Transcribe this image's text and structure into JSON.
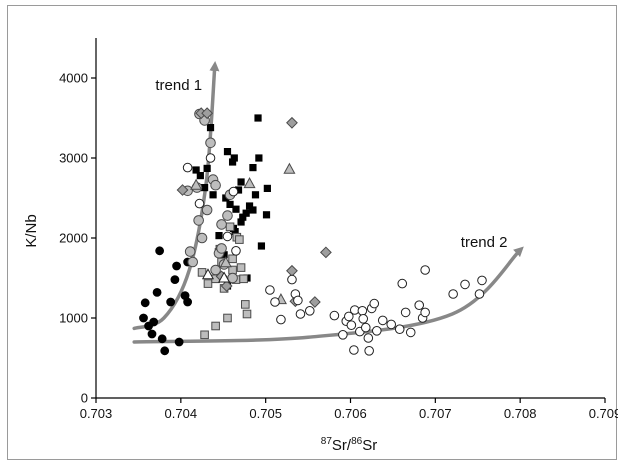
{
  "chart_data": {
    "type": "scatter",
    "xlabel_parts": {
      "iso_a": "87",
      "sr_a": "Sr",
      "slash": "/",
      "iso_b": "86",
      "sr_b": "Sr"
    },
    "ylabel": "K/Nb",
    "xlim": [
      0.703,
      0.709
    ],
    "ylim": [
      0,
      4500
    ],
    "xticks": [
      "0.703",
      "0.704",
      "0.705",
      "0.706",
      "0.707",
      "0.708",
      "0.709"
    ],
    "yticks": [
      "0",
      "1000",
      "2000",
      "3000",
      "4000"
    ],
    "xtick_values": [
      0.703,
      0.704,
      0.705,
      0.706,
      0.707,
      0.708,
      0.709
    ],
    "ytick_values": [
      0,
      1000,
      2000,
      3000,
      4000
    ],
    "grid": false,
    "colors": {
      "black": "#000000",
      "grey_fill": "#bdbdbd",
      "diamond_fill": "#9e9e9e",
      "open_fill": "#ffffff",
      "outline": "#4a4a4a",
      "trend": "#888888"
    },
    "annotations": [
      {
        "text": "trend 1",
        "x": 0.7037,
        "y": 3850
      },
      {
        "text": "trend 2",
        "x": 0.7073,
        "y": 1890
      }
    ],
    "trends": [
      {
        "name": "trend 1",
        "points": [
          [
            0.70345,
            870
          ],
          [
            0.7038,
            1000
          ],
          [
            0.7041,
            1600
          ],
          [
            0.7043,
            2700
          ],
          [
            0.7044,
            4150
          ]
        ]
      },
      {
        "name": "trend 2",
        "points": [
          [
            0.70345,
            700
          ],
          [
            0.7055,
            760
          ],
          [
            0.7072,
            1050
          ],
          [
            0.708,
            1850
          ]
        ]
      }
    ],
    "series": [
      {
        "marker": "filled-circle",
        "points": [
          [
            0.70356,
            1000
          ],
          [
            0.70362,
            900
          ],
          [
            0.70358,
            1190
          ],
          [
            0.70368,
            950
          ],
          [
            0.70372,
            1320
          ],
          [
            0.70375,
            1840
          ],
          [
            0.70378,
            740
          ],
          [
            0.70381,
            590
          ],
          [
            0.70388,
            1200
          ],
          [
            0.70393,
            1480
          ],
          [
            0.70395,
            1650
          ],
          [
            0.70398,
            700
          ],
          [
            0.70405,
            1280
          ],
          [
            0.70408,
            1200
          ],
          [
            0.70408,
            1700
          ],
          [
            0.70366,
            800
          ]
        ]
      },
      {
        "marker": "filled-square",
        "points": [
          [
            0.70418,
            2850
          ],
          [
            0.70423,
            2780
          ],
          [
            0.70428,
            2630
          ],
          [
            0.70431,
            2870
          ],
          [
            0.70435,
            3380
          ],
          [
            0.70438,
            2540
          ],
          [
            0.70442,
            1580
          ],
          [
            0.70445,
            2030
          ],
          [
            0.70448,
            1800
          ],
          [
            0.70451,
            1790
          ],
          [
            0.70453,
            2500
          ],
          [
            0.70455,
            3080
          ],
          [
            0.70458,
            2420
          ],
          [
            0.70461,
            2950
          ],
          [
            0.70462,
            2120
          ],
          [
            0.70464,
            2080
          ],
          [
            0.70468,
            2600
          ],
          [
            0.70471,
            2200
          ],
          [
            0.70473,
            2260
          ],
          [
            0.70477,
            2310
          ],
          [
            0.70478,
            1500
          ],
          [
            0.70481,
            2400
          ],
          [
            0.70485,
            2880
          ],
          [
            0.70488,
            2540
          ],
          [
            0.70491,
            3500
          ],
          [
            0.70495,
            1900
          ],
          [
            0.70501,
            2290
          ],
          [
            0.70502,
            2620
          ],
          [
            0.70465,
            2360
          ],
          [
            0.70485,
            2350
          ],
          [
            0.70455,
            1400
          ],
          [
            0.70471,
            2700
          ],
          [
            0.70463,
            3000
          ],
          [
            0.70492,
            3000
          ]
        ]
      },
      {
        "marker": "grey-square",
        "points": [
          [
            0.70425,
            1570
          ],
          [
            0.70428,
            790
          ],
          [
            0.70432,
            1430
          ],
          [
            0.70441,
            1490
          ],
          [
            0.70446,
            1860
          ],
          [
            0.70448,
            1700
          ],
          [
            0.70451,
            1370
          ],
          [
            0.70455,
            1000
          ],
          [
            0.70461,
            1600
          ],
          [
            0.70465,
            1480
          ],
          [
            0.70466,
            2010
          ],
          [
            0.70469,
            1980
          ],
          [
            0.70471,
            1630
          ],
          [
            0.70474,
            1490
          ],
          [
            0.70476,
            1170
          ],
          [
            0.70478,
            1050
          ],
          [
            0.70445,
            1820
          ],
          [
            0.70441,
            900
          ],
          [
            0.70458,
            2140
          ],
          [
            0.70461,
            1740
          ]
        ]
      },
      {
        "marker": "grey-circle",
        "points": [
          [
            0.70408,
            2590
          ],
          [
            0.70411,
            1830
          ],
          [
            0.70414,
            1700
          ],
          [
            0.70419,
            2630
          ],
          [
            0.70421,
            2220
          ],
          [
            0.70422,
            3550
          ],
          [
            0.70425,
            2000
          ],
          [
            0.70428,
            3470
          ],
          [
            0.70431,
            2350
          ],
          [
            0.70435,
            3190
          ],
          [
            0.70438,
            2730
          ],
          [
            0.70441,
            2660
          ],
          [
            0.70445,
            1810
          ],
          [
            0.70448,
            2170
          ],
          [
            0.70451,
            1670
          ],
          [
            0.70455,
            2280
          ],
          [
            0.70458,
            2540
          ],
          [
            0.70461,
            1500
          ],
          [
            0.70441,
            1600
          ],
          [
            0.70448,
            1870
          ]
        ]
      },
      {
        "marker": "grey-diamond",
        "points": [
          [
            0.70402,
            2600
          ],
          [
            0.70424,
            3560
          ],
          [
            0.70431,
            3560
          ],
          [
            0.70448,
            1520
          ],
          [
            0.70454,
            1400
          ],
          [
            0.70531,
            3440
          ],
          [
            0.70531,
            1590
          ],
          [
            0.70535,
            1210
          ],
          [
            0.70571,
            1820
          ],
          [
            0.70558,
            1200
          ]
        ]
      },
      {
        "marker": "grey-triangle",
        "points": [
          [
            0.70418,
            2660
          ],
          [
            0.70453,
            1690
          ],
          [
            0.70481,
            2680
          ],
          [
            0.70528,
            2860
          ],
          [
            0.70518,
            1230
          ]
        ]
      },
      {
        "marker": "open-triangle",
        "points": [
          [
            0.70432,
            1540
          ],
          [
            0.70451,
            1500
          ]
        ]
      },
      {
        "marker": "open-circle",
        "points": [
          [
            0.70408,
            2880
          ],
          [
            0.70422,
            2430
          ],
          [
            0.70435,
            3000
          ],
          [
            0.70455,
            2020
          ],
          [
            0.70462,
            2580
          ],
          [
            0.70465,
            1840
          ],
          [
            0.70505,
            1350
          ],
          [
            0.70511,
            1200
          ],
          [
            0.70518,
            980
          ],
          [
            0.70531,
            1480
          ],
          [
            0.70535,
            1300
          ],
          [
            0.70538,
            1220
          ],
          [
            0.70541,
            1050
          ],
          [
            0.70552,
            1090
          ],
          [
            0.70581,
            1030
          ],
          [
            0.70591,
            790
          ],
          [
            0.70595,
            960
          ],
          [
            0.70598,
            1020
          ],
          [
            0.70601,
            910
          ],
          [
            0.70604,
            600
          ],
          [
            0.70605,
            1100
          ],
          [
            0.70611,
            830
          ],
          [
            0.70614,
            1090
          ],
          [
            0.70615,
            990
          ],
          [
            0.70618,
            880
          ],
          [
            0.70621,
            750
          ],
          [
            0.70622,
            590
          ],
          [
            0.70625,
            1120
          ],
          [
            0.70628,
            1180
          ],
          [
            0.70631,
            840
          ],
          [
            0.70638,
            970
          ],
          [
            0.70648,
            920
          ],
          [
            0.70658,
            860
          ],
          [
            0.70661,
            1430
          ],
          [
            0.70665,
            1070
          ],
          [
            0.70671,
            820
          ],
          [
            0.70681,
            1160
          ],
          [
            0.70685,
            1000
          ],
          [
            0.70688,
            1070
          ],
          [
            0.70688,
            1600
          ],
          [
            0.70721,
            1300
          ],
          [
            0.70735,
            1420
          ],
          [
            0.70752,
            1300
          ],
          [
            0.70755,
            1470
          ]
        ]
      }
    ]
  }
}
